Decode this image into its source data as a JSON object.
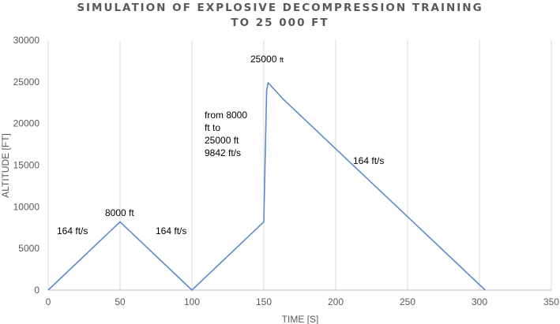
{
  "chart_data": {
    "type": "line",
    "title_lines": [
      "SIMULATION OF EXPLOSIVE DECOMPRESSION TRAINING",
      "TO 25 000 FT"
    ],
    "xlabel": "TIME [S]",
    "ylabel": "ALTITUDE [FT]",
    "xlim": [
      0,
      350
    ],
    "ylim": [
      0,
      30000
    ],
    "x_ticks": [
      0,
      50,
      100,
      150,
      200,
      250,
      300,
      350
    ],
    "y_ticks": [
      0,
      5000,
      10000,
      15000,
      20000,
      25000,
      30000
    ],
    "grid": "vertical",
    "legend": "none",
    "line_color": "#5B8BC9",
    "series": [
      {
        "x": [
          0,
          50,
          100,
          150,
          152,
          153,
          163,
          304
        ],
        "y": [
          0,
          8200,
          0,
          8200,
          24000,
          24900,
          23000,
          0
        ]
      }
    ],
    "annotations": {
      "a1": "164 ft/s",
      "a2": "8000 ft",
      "a3": "164 ft/s",
      "a4_lines": [
        "from 8000",
        "ft to",
        "25000 ft",
        "9842 ft/s"
      ],
      "a5_num": "25000",
      "a5_unit": "ft",
      "a6": "164 ft/s"
    }
  }
}
